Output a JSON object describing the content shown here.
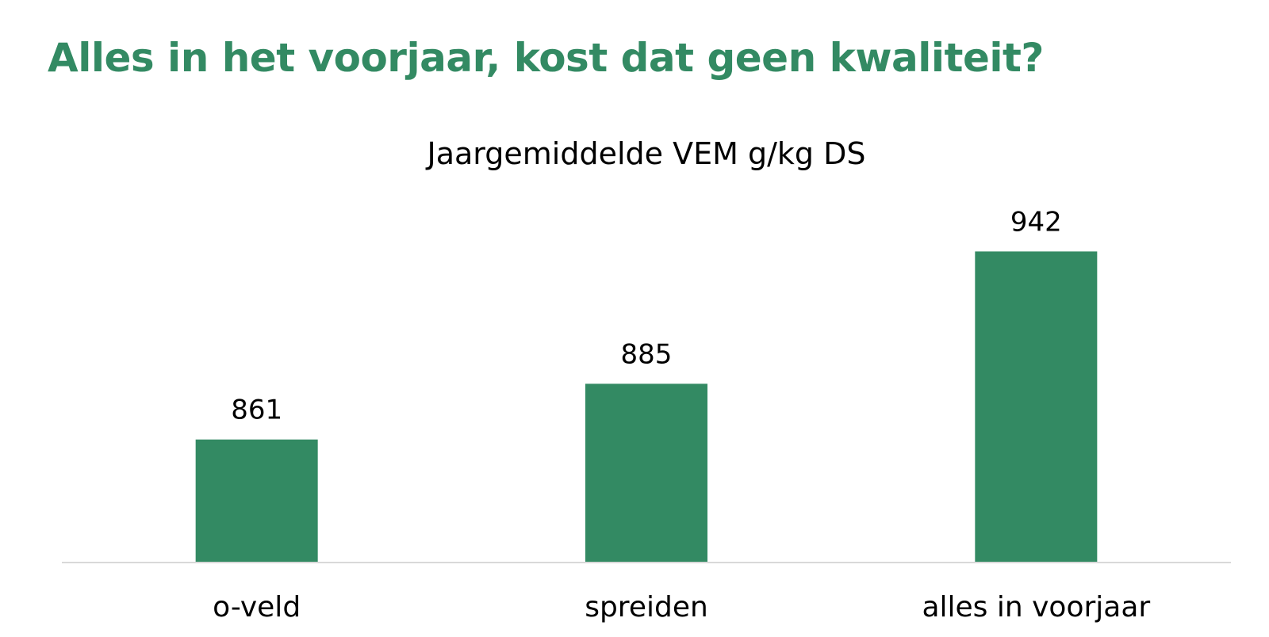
{
  "slide": {
    "title": "Alles in het voorjaar, kost dat geen kwaliteit?"
  },
  "colors": {
    "accent": "#338a63",
    "bar": "#338a63",
    "axis": "#d9d9d9",
    "text": "#000000"
  },
  "chart_data": {
    "type": "bar",
    "title": "Jaargemiddelde VEM g/kg DS",
    "xlabel": "",
    "ylabel": "",
    "categories": [
      "o-veld",
      "spreiden",
      "alles in voorjaar"
    ],
    "series": [
      {
        "values": [
          861,
          885,
          942
        ]
      }
    ],
    "data_labels": [
      "861",
      "885",
      "942"
    ],
    "ylim": [
      808,
      965
    ],
    "grid": false,
    "legend": "none"
  }
}
